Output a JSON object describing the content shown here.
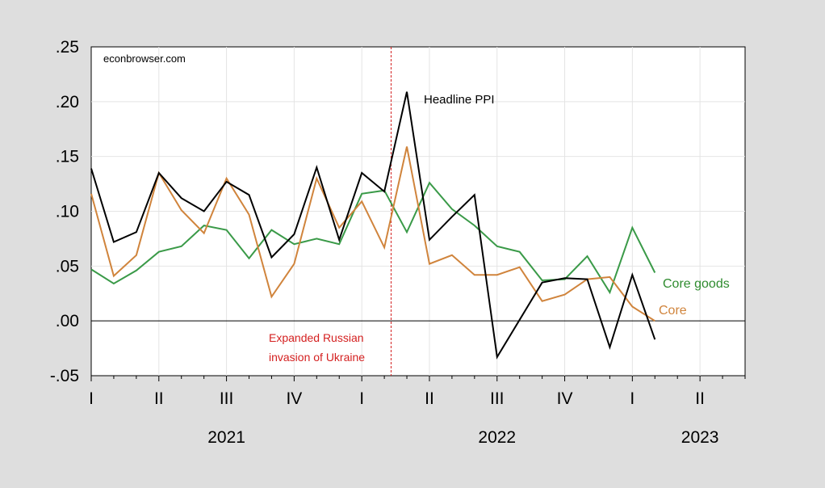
{
  "source_note": "econbrowser.com",
  "chart_data": {
    "type": "line",
    "title": "",
    "xlabel": "",
    "ylabel": "",
    "ylim": [
      -0.05,
      0.25
    ],
    "y_ticks": [
      ".25",
      ".20",
      ".15",
      ".10",
      ".05",
      ".00",
      "-.05"
    ],
    "y_tick_values": [
      0.25,
      0.2,
      0.15,
      0.1,
      0.05,
      0.0,
      -0.05
    ],
    "x": [
      "2021-01",
      "2021-02",
      "2021-03",
      "2021-04",
      "2021-05",
      "2021-06",
      "2021-07",
      "2021-08",
      "2021-09",
      "2021-10",
      "2021-11",
      "2021-12",
      "2022-01",
      "2022-02",
      "2022-03",
      "2022-04",
      "2022-05",
      "2022-06",
      "2022-07",
      "2022-08",
      "2022-09",
      "2022-10",
      "2022-11",
      "2022-12",
      "2023-01",
      "2023-02"
    ],
    "quarter_labels": [
      "I",
      "II",
      "III",
      "IV",
      "I",
      "II",
      "III",
      "IV",
      "I",
      "II"
    ],
    "year_labels": [
      "2021",
      "2022",
      "2023"
    ],
    "grid": true,
    "series": [
      {
        "name": "Headline PPI",
        "color": "#000000",
        "values": [
          0.139,
          0.072,
          0.081,
          0.135,
          0.112,
          0.1,
          0.127,
          0.115,
          0.058,
          0.079,
          0.14,
          0.074,
          0.135,
          0.118,
          0.209,
          0.074,
          0.095,
          0.115,
          -0.033,
          0.001,
          0.035,
          0.039,
          0.038,
          -0.024,
          0.042,
          -0.017
        ]
      },
      {
        "name": "Core",
        "color": "#d0843c",
        "values": [
          0.116,
          0.041,
          0.06,
          0.135,
          0.101,
          0.08,
          0.13,
          0.097,
          0.022,
          0.052,
          0.13,
          0.085,
          0.109,
          0.067,
          0.159,
          0.052,
          0.06,
          0.042,
          0.042,
          0.049,
          0.018,
          0.024,
          0.038,
          0.04,
          0.013,
          0.0
        ]
      },
      {
        "name": "Core goods",
        "color": "#3a9a48",
        "values": [
          0.047,
          0.034,
          0.046,
          0.063,
          0.068,
          0.087,
          0.083,
          0.057,
          0.083,
          0.07,
          0.075,
          0.07,
          0.116,
          0.119,
          0.081,
          0.126,
          0.102,
          0.087,
          0.068,
          0.063,
          0.037,
          0.038,
          0.059,
          0.026,
          0.085,
          0.044
        ]
      }
    ],
    "annotation": {
      "line1": "Expanded Russian",
      "line2": "invasion of Ukraine",
      "event_month": "2022-02",
      "color": "#d42020"
    }
  }
}
